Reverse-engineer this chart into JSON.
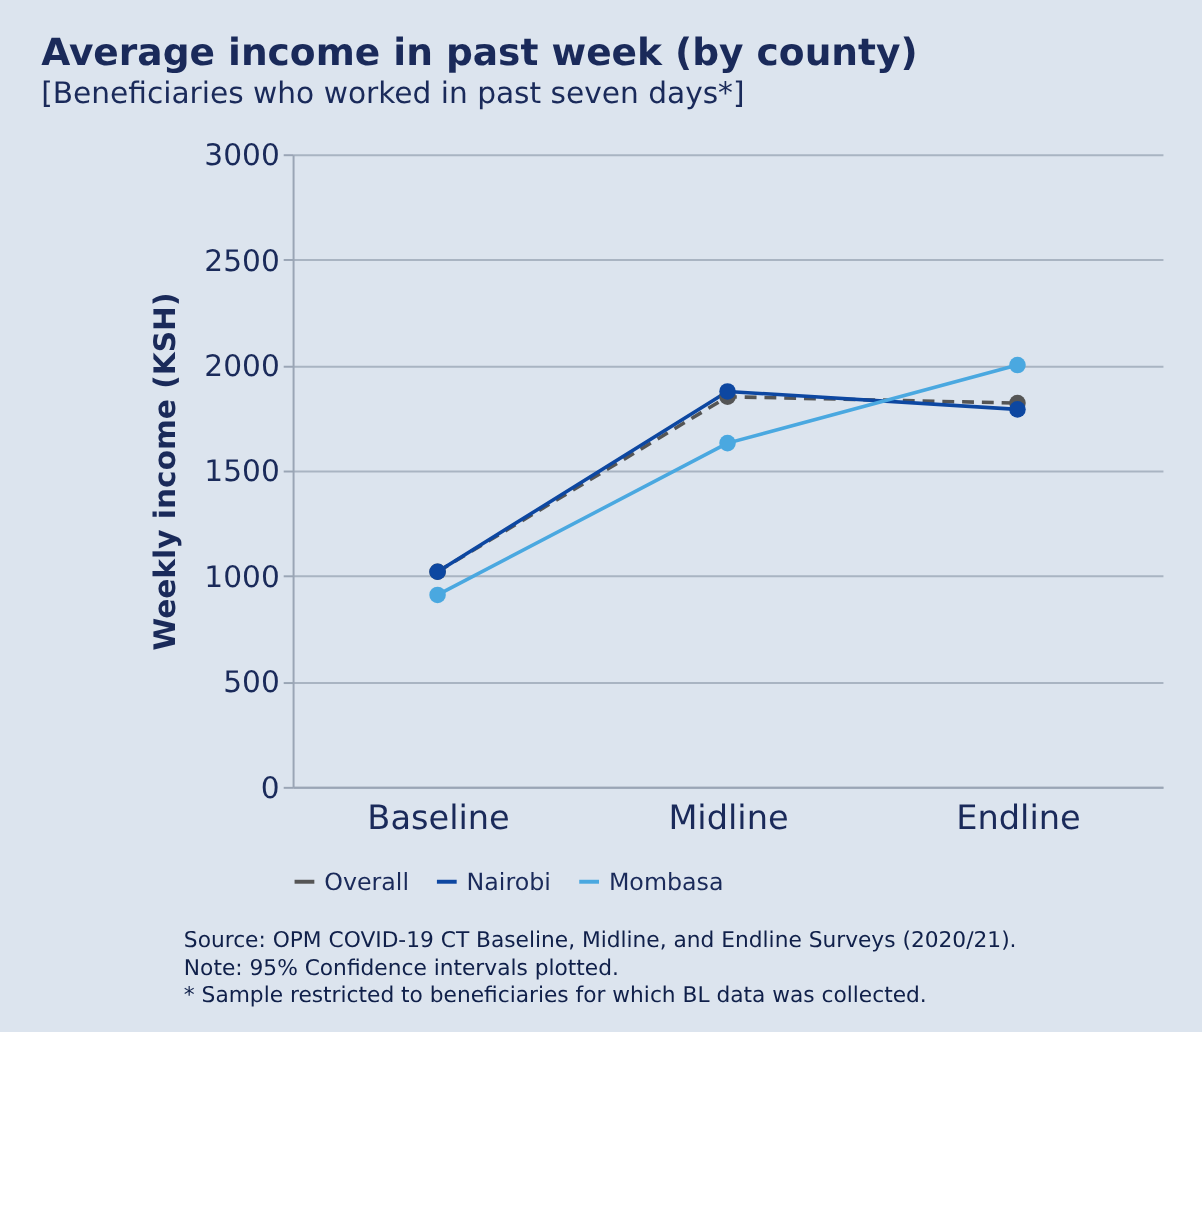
{
  "chart_data": {
    "type": "line",
    "title": "Average income in past week (by county)",
    "subtitle": "[Beneficiaries who worked in past seven days*]",
    "ylabel": "Weekly income (KSH)",
    "categories": [
      "Baseline",
      "Midline",
      "Endline"
    ],
    "series": [
      {
        "name": "Overall",
        "color": "#555555",
        "line_style": "dashed",
        "values": [
          1020,
          1850,
          1820
        ]
      },
      {
        "name": "Nairobi",
        "color": "#0d47a1",
        "line_style": "solid",
        "values": [
          1020,
          1875,
          1790
        ]
      },
      {
        "name": "Mombasa",
        "color": "#4aa8e0",
        "line_style": "solid",
        "values": [
          910,
          1630,
          2000
        ]
      }
    ],
    "ylim": [
      0,
      3000
    ],
    "yticks": [
      0,
      500,
      1000,
      1500,
      2000,
      2500,
      3000
    ],
    "grid": "y",
    "legend": "bottom",
    "marker": "circle",
    "annotations": [
      "Source: OPM COVID-19 CT Baseline, Midline, and Endline Surveys (2020/21).",
      "Note: 95% Confidence intervals plotted.",
      "* Sample restricted to beneficiaries for which BL data was collected."
    ]
  }
}
